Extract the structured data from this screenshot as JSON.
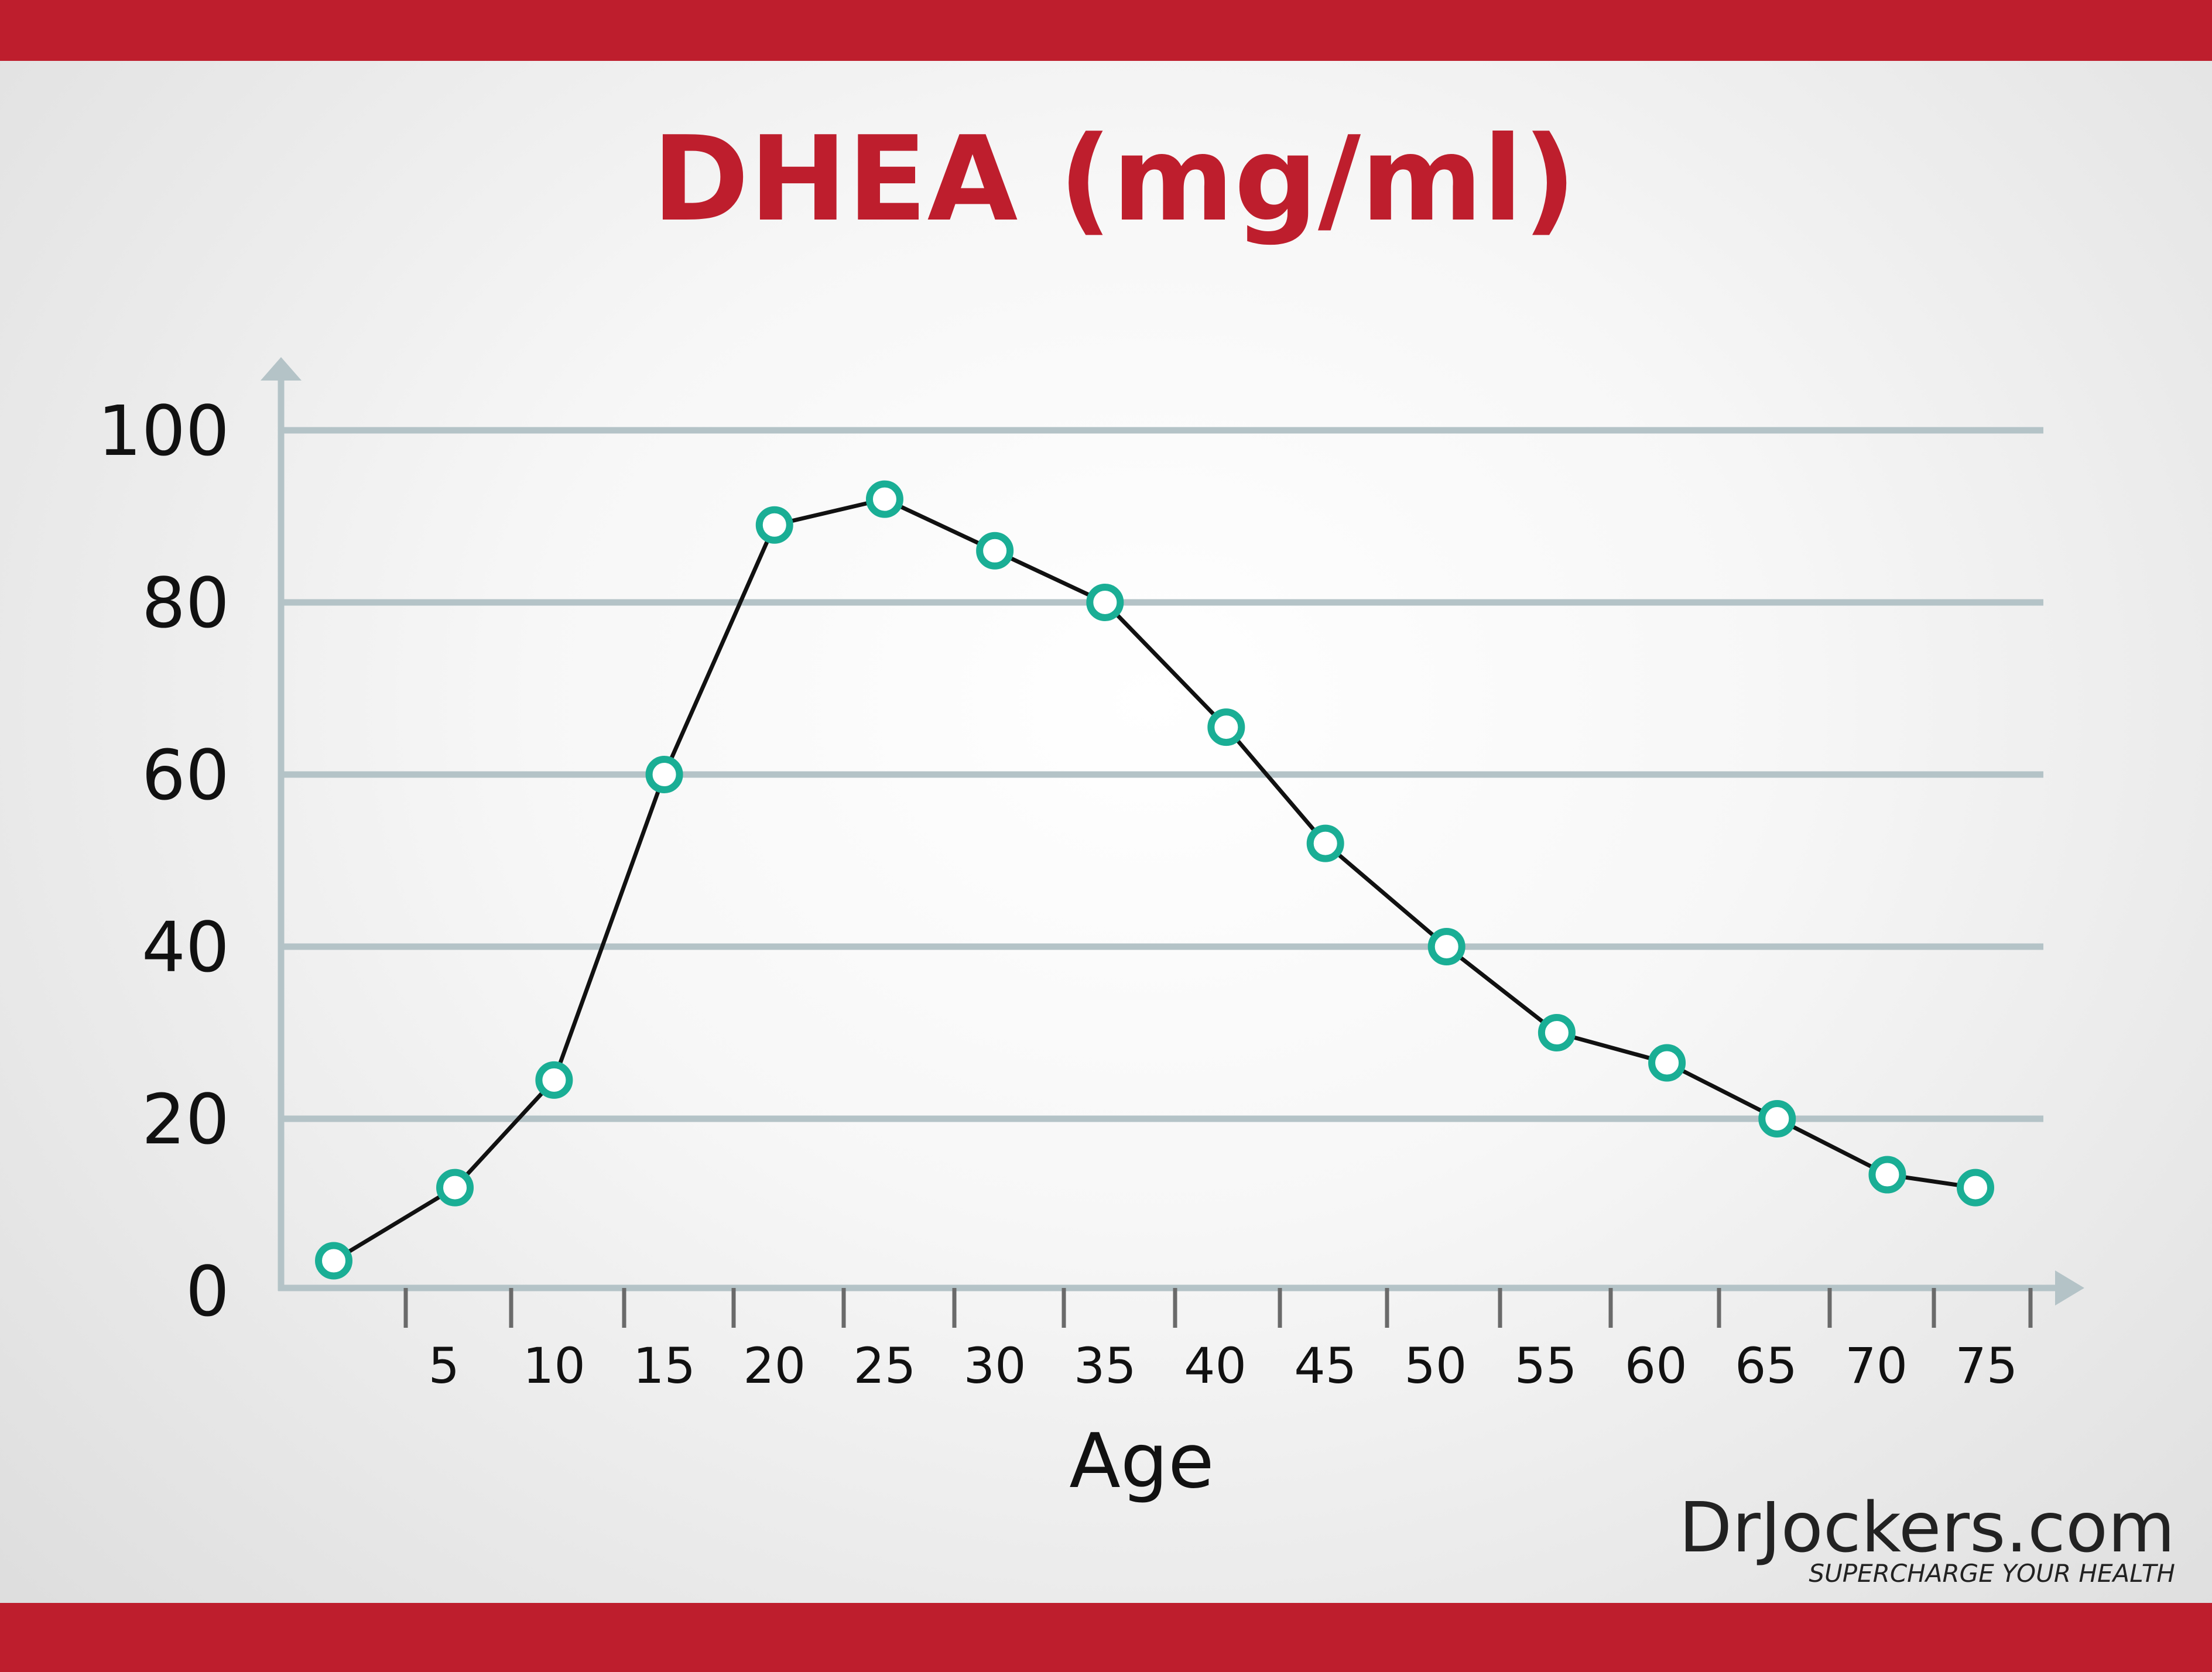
{
  "chart_data": {
    "type": "line",
    "title": "DHEA (mg/ml)",
    "xlabel": "Age",
    "ylabel": "",
    "ylim": [
      0,
      100
    ],
    "yticks": [
      0,
      20,
      40,
      60,
      80,
      100
    ],
    "xlim": [
      -5,
      79
    ],
    "xticks": [
      5,
      10,
      15,
      20,
      25,
      30,
      35,
      40,
      45,
      50,
      55,
      60,
      65,
      70,
      75
    ],
    "grid": true,
    "legend": "none",
    "series": [
      {
        "x": [
          0,
          5.5,
          10,
          15,
          20,
          25,
          30,
          35,
          40.5,
          45,
          50.5,
          55.5,
          60.5,
          65.5,
          70.5,
          74.5
        ],
        "values": [
          3.5,
          12,
          24.5,
          60,
          89,
          92,
          86,
          80,
          65.5,
          52,
          40,
          30,
          26.5,
          20,
          13.5,
          12
        ]
      }
    ],
    "colors": {
      "line": "#111111",
      "marker": "#1aae95",
      "grid": "#b4c3c7",
      "axis": "#b4c3c7",
      "title": "#be1e2d",
      "bars": "#be1e2d"
    }
  },
  "logo": {
    "brand": "DrJockers.com",
    "tagline": "SUPERCHARGE YOUR HEALTH"
  }
}
